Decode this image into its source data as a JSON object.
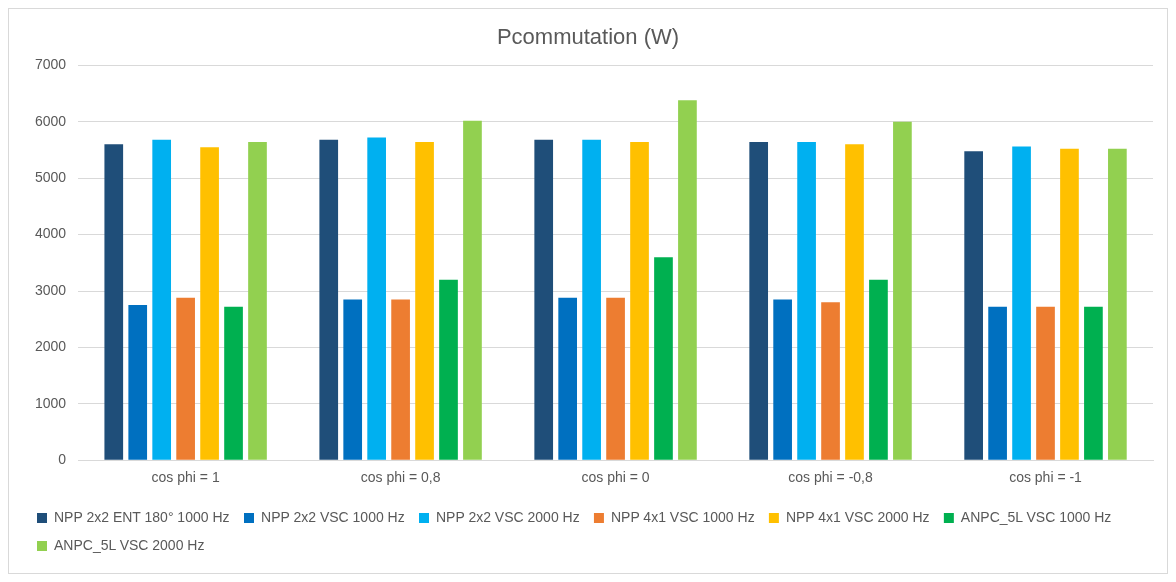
{
  "chart_data": {
    "type": "bar",
    "title": "Pcommutation (W)",
    "categories": [
      "cos phi = 1",
      "cos phi = 0,8",
      "cos phi = 0",
      "cos phi = -0,8",
      "cos phi = -1"
    ],
    "series": [
      {
        "name": "NPP 2x2 ENT 180° 1000 Hz",
        "color": "#1f4e79",
        "values": [
          5600,
          5680,
          5680,
          5640,
          5480
        ]
      },
      {
        "name": "NPP 2x2 VSC 1000 Hz",
        "color": "#0070c0",
        "values": [
          2750,
          2850,
          2880,
          2850,
          2720
        ]
      },
      {
        "name": "NPP 2x2 VSC 2000 Hz",
        "color": "#00b0f0",
        "values": [
          5680,
          5720,
          5680,
          5640,
          5560
        ]
      },
      {
        "name": "NPP 4x1 VSC 1000 Hz",
        "color": "#ed7d31",
        "values": [
          2880,
          2850,
          2880,
          2800,
          2720
        ]
      },
      {
        "name": "NPP 4x1 VSC 2000 Hz",
        "color": "#ffc000",
        "values": [
          5550,
          5640,
          5640,
          5600,
          5520
        ]
      },
      {
        "name": "ANPC_5L VSC 1000 Hz",
        "color": "#00b050",
        "values": [
          2720,
          3200,
          3600,
          3200,
          2720
        ]
      },
      {
        "name": "ANPC_5L VSC 2000 Hz",
        "color": "#92d050",
        "values": [
          5640,
          6020,
          6380,
          6000,
          5520
        ]
      }
    ],
    "ylim": [
      0,
      7000
    ],
    "yticks": [
      0,
      1000,
      2000,
      3000,
      4000,
      5000,
      6000,
      7000
    ],
    "grid": "y",
    "legend": "bottom"
  }
}
